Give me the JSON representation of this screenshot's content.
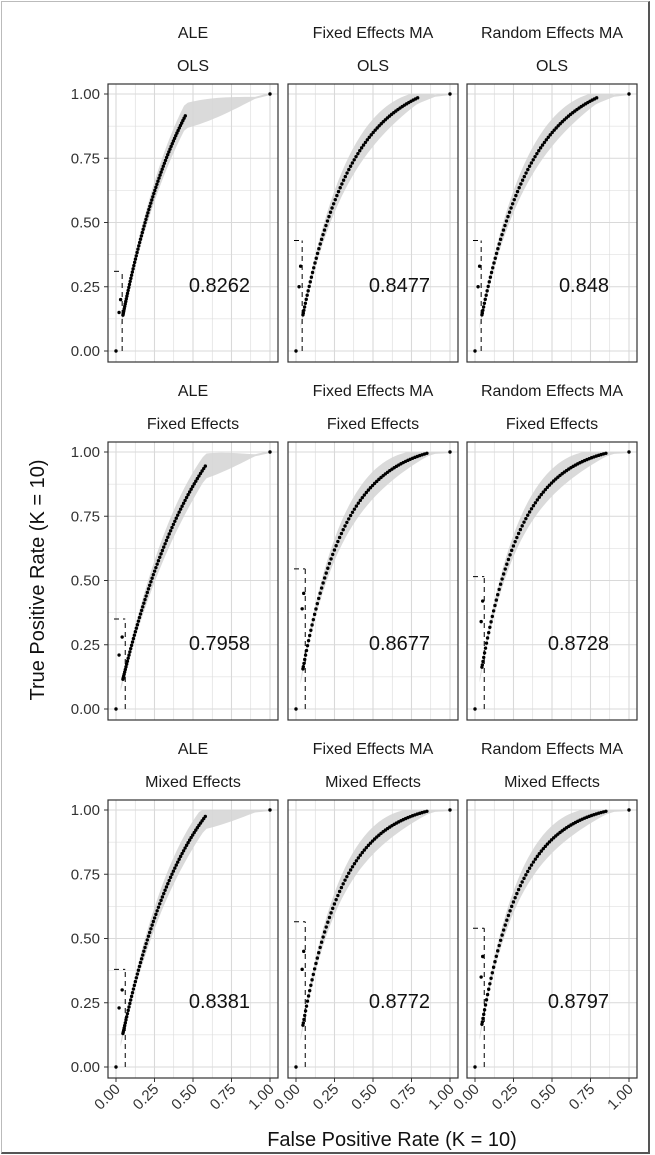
{
  "chart_data": {
    "type": "scatter",
    "xlabel": "False Positive Rate (K = 10)",
    "ylabel": "True Positive Rate (K = 10)",
    "xlim": [
      0,
      1
    ],
    "ylim": [
      0,
      1
    ],
    "x_ticks": [
      "0.00",
      "0.25",
      "0.50",
      "0.75",
      "1.00"
    ],
    "y_ticks": [
      "0.00",
      "0.25",
      "0.50",
      "0.75",
      "1.00"
    ],
    "grid": true,
    "colors": {
      "points": "#000000",
      "band": "#d3d3d3",
      "grid": "#d9d9d9",
      "border": "#333333"
    },
    "panels": [
      {
        "col": "ALE",
        "row": "OLS",
        "auc": "0.8262",
        "cutoff": [
          0.04,
          0.31
        ],
        "curve": {
          "shape": 2.3,
          "xmax": 0.45,
          "ymax": 0.915
        },
        "band": 0.045,
        "extra_points": [
          [
            0.0,
            0.0
          ],
          [
            0.02,
            0.15
          ],
          [
            0.03,
            0.2
          ],
          [
            1.0,
            1.0
          ]
        ]
      },
      {
        "col": "Fixed Effects MA",
        "row": "OLS",
        "auc": "0.8477",
        "cutoff": [
          0.04,
          0.43
        ],
        "curve": {
          "shape": 3.1,
          "xmax": 0.79,
          "ymax": 0.985
        },
        "band": 0.05,
        "extra_points": [
          [
            0.0,
            0.0
          ],
          [
            0.02,
            0.25
          ],
          [
            0.03,
            0.33
          ],
          [
            1.0,
            1.0
          ]
        ]
      },
      {
        "col": "Random Effects MA",
        "row": "OLS",
        "auc": "0.848",
        "cutoff": [
          0.04,
          0.43
        ],
        "curve": {
          "shape": 3.1,
          "xmax": 0.79,
          "ymax": 0.985
        },
        "band": 0.05,
        "extra_points": [
          [
            0.0,
            0.0
          ],
          [
            0.02,
            0.25
          ],
          [
            0.03,
            0.33
          ],
          [
            1.0,
            1.0
          ]
        ]
      },
      {
        "col": "ALE",
        "row": "Fixed Effects",
        "auc": "0.7958",
        "cutoff": [
          0.06,
          0.35
        ],
        "curve": {
          "shape": 1.9,
          "xmax": 0.58,
          "ymax": 0.945
        },
        "band": 0.05,
        "extra_points": [
          [
            0.0,
            0.0
          ],
          [
            0.02,
            0.21
          ],
          [
            0.04,
            0.28
          ],
          [
            1.0,
            1.0
          ]
        ]
      },
      {
        "col": "Fixed Effects MA",
        "row": "Fixed Effects",
        "auc": "0.8677",
        "cutoff": [
          0.06,
          0.545
        ],
        "curve": {
          "shape": 3.6,
          "xmax": 0.85,
          "ymax": 0.995
        },
        "band": 0.05,
        "extra_points": [
          [
            0.0,
            0.0
          ],
          [
            0.04,
            0.39
          ],
          [
            0.05,
            0.45
          ],
          [
            1.0,
            1.0
          ]
        ]
      },
      {
        "col": "Random Effects MA",
        "row": "Fixed Effects",
        "auc": "0.8728",
        "cutoff": [
          0.06,
          0.515
        ],
        "curve": {
          "shape": 3.8,
          "xmax": 0.85,
          "ymax": 0.995
        },
        "band": 0.05,
        "extra_points": [
          [
            0.0,
            0.0
          ],
          [
            0.04,
            0.34
          ],
          [
            0.05,
            0.42
          ],
          [
            1.0,
            1.0
          ]
        ]
      },
      {
        "col": "ALE",
        "row": "Mixed Effects",
        "auc": "0.8381",
        "cutoff": [
          0.06,
          0.38
        ],
        "curve": {
          "shape": 2.3,
          "xmax": 0.58,
          "ymax": 0.975
        },
        "band": 0.05,
        "extra_points": [
          [
            0.0,
            0.0
          ],
          [
            0.02,
            0.23
          ],
          [
            0.04,
            0.3
          ],
          [
            1.0,
            1.0
          ]
        ]
      },
      {
        "col": "Fixed Effects MA",
        "row": "Mixed Effects",
        "auc": "0.8772",
        "cutoff": [
          0.06,
          0.565
        ],
        "curve": {
          "shape": 3.8,
          "xmax": 0.85,
          "ymax": 0.995
        },
        "band": 0.05,
        "extra_points": [
          [
            0.0,
            0.0
          ],
          [
            0.04,
            0.38
          ],
          [
            0.05,
            0.45
          ],
          [
            1.0,
            1.0
          ]
        ]
      },
      {
        "col": "Random Effects MA",
        "row": "Mixed Effects",
        "auc": "0.8797",
        "cutoff": [
          0.06,
          0.54
        ],
        "curve": {
          "shape": 3.9,
          "xmax": 0.85,
          "ymax": 0.995
        },
        "band": 0.05,
        "extra_points": [
          [
            0.0,
            0.0
          ],
          [
            0.04,
            0.35
          ],
          [
            0.05,
            0.43
          ],
          [
            1.0,
            1.0
          ]
        ]
      }
    ]
  }
}
